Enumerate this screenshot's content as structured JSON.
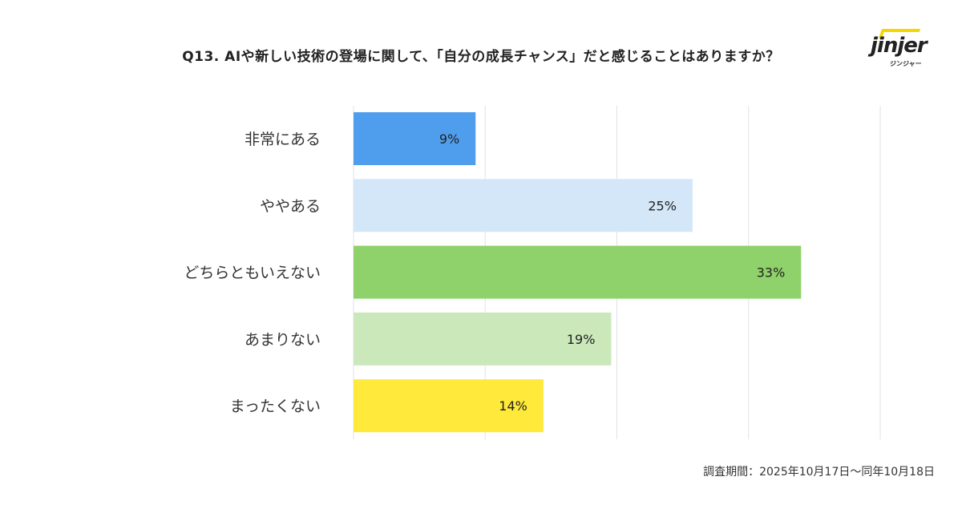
{
  "title": "Q13. AIや新しい技術の登場に関して、「自分の成長チャンス」だと感じることはありますか？",
  "logo": {
    "word": "jinjer",
    "sub": "ジンジャー"
  },
  "footer": "調査期間：2025年10月17日〜同年10月18日",
  "chart_data": {
    "type": "bar",
    "orientation": "horizontal",
    "title": "Q13. AIや新しい技術の登場に関して、「自分の成長チャンス」だと感じることはありますか？",
    "categories": [
      "非常にある",
      "ややある",
      "どちらともいえない",
      "あまりない",
      "まったくない"
    ],
    "values": [
      9,
      25,
      33,
      19,
      14
    ],
    "labels": [
      "9%",
      "25%",
      "33%",
      "19%",
      "14%"
    ],
    "colors": [
      "#4f9eed",
      "#d4e7f8",
      "#8fd16a",
      "#cbe8bb",
      "#ffe93a"
    ],
    "xlim": [
      0,
      40
    ],
    "grid": true,
    "gridStep": 10,
    "xlabel": "",
    "ylabel": ""
  }
}
